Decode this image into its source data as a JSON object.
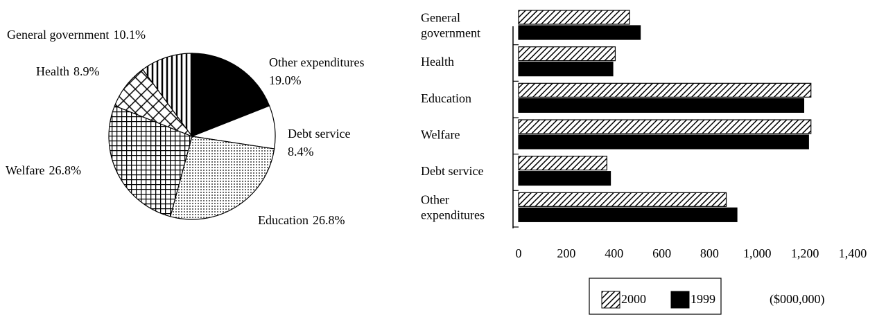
{
  "chart_data": [
    {
      "type": "pie",
      "categories": [
        "Other expenditures",
        "Debt service",
        "Education",
        "Welfare",
        "Health",
        "General government"
      ],
      "values": [
        19.0,
        8.4,
        26.8,
        26.8,
        8.9,
        10.1
      ],
      "value_labels": [
        "19.0%",
        "8.4%",
        "26.8%",
        "26.8%",
        "8.9%",
        "10.1%"
      ],
      "patterns": [
        "solid",
        "none",
        "dots",
        "grid",
        "crosshatch",
        "vertical"
      ],
      "color": "#000000"
    },
    {
      "type": "hbar",
      "categories": [
        "General government",
        "Health",
        "Education",
        "Welfare",
        "Debt service",
        "Other expenditures"
      ],
      "series": [
        {
          "name": "2000",
          "color": "#000000",
          "pattern": "diagonal",
          "values": [
            465,
            405,
            1225,
            1225,
            370,
            870
          ]
        },
        {
          "name": "1999",
          "color": "#000000",
          "pattern": "solid",
          "values": [
            510,
            395,
            1195,
            1215,
            385,
            915
          ]
        }
      ],
      "xlim": [
        0,
        1400
      ],
      "xticks": [
        0,
        200,
        400,
        600,
        800,
        {
          "value": 1000,
          "label": "1,000"
        },
        {
          "value": 1200,
          "label": "1,200"
        },
        {
          "value": 1400,
          "label": "1,400"
        }
      ],
      "unit_label": "($000,000)",
      "legend": "bottom"
    }
  ]
}
